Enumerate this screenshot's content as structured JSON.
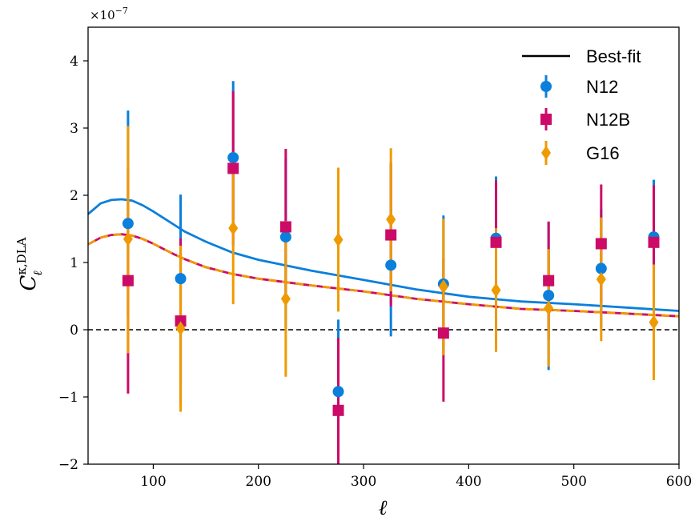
{
  "chart_data": {
    "type": "scatter",
    "xlabel": "ℓ",
    "ylabel": "C",
    "ylabel_sub": "ℓ",
    "ylabel_sup": "κ,DLA",
    "scale_label": "×10",
    "scale_exponent": "−7",
    "xlim": [
      38,
      600
    ],
    "ylim": [
      -2,
      4.5
    ],
    "xticks": [
      100,
      200,
      300,
      400,
      500,
      600
    ],
    "xtick_labels": [
      "100",
      "200",
      "300",
      "400",
      "500",
      "600"
    ],
    "yticks": [
      -2,
      -1,
      0,
      1,
      2,
      3,
      4
    ],
    "ytick_labels": [
      "−2",
      "−1",
      "0",
      "1",
      "2",
      "3",
      "4"
    ],
    "zero_line": 0,
    "grid": false,
    "legend_position": "top-right",
    "legend": [
      {
        "label": "Best-fit",
        "marker": "line",
        "color": "#000000"
      },
      {
        "label": "N12",
        "marker": "circle",
        "color": "#0a7fdc"
      },
      {
        "label": "N12B",
        "marker": "square",
        "color": "#cc0a67"
      },
      {
        "label": "G16",
        "marker": "diamond",
        "color": "#ef9a00"
      }
    ],
    "curves": [
      {
        "name": "N12",
        "color": "#0a7fdc",
        "dash": false,
        "x": [
          38,
          50,
          60,
          70,
          80,
          90,
          100,
          110,
          120,
          130,
          150,
          175,
          200,
          250,
          300,
          350,
          400,
          450,
          500,
          550,
          600
        ],
        "y": [
          1.72,
          1.88,
          1.93,
          1.94,
          1.92,
          1.85,
          1.76,
          1.66,
          1.56,
          1.46,
          1.31,
          1.15,
          1.04,
          0.88,
          0.74,
          0.6,
          0.49,
          0.42,
          0.38,
          0.33,
          0.28
        ]
      },
      {
        "name": "N12B",
        "color": "#cc0a67",
        "dash": false,
        "x": [
          38,
          50,
          60,
          70,
          80,
          90,
          100,
          110,
          120,
          130,
          150,
          175,
          200,
          250,
          300,
          350,
          400,
          450,
          500,
          550,
          600
        ],
        "y": [
          1.27,
          1.37,
          1.41,
          1.42,
          1.4,
          1.35,
          1.28,
          1.2,
          1.12,
          1.05,
          0.93,
          0.83,
          0.76,
          0.66,
          0.57,
          0.46,
          0.38,
          0.31,
          0.28,
          0.24,
          0.2
        ]
      },
      {
        "name": "G16",
        "color": "#ef9a00",
        "dash": true,
        "x": [
          38,
          50,
          60,
          70,
          80,
          90,
          100,
          110,
          120,
          130,
          150,
          175,
          200,
          250,
          300,
          350,
          400,
          450,
          500,
          550,
          600
        ],
        "y": [
          1.27,
          1.37,
          1.41,
          1.42,
          1.4,
          1.35,
          1.28,
          1.2,
          1.12,
          1.05,
          0.93,
          0.83,
          0.76,
          0.66,
          0.57,
          0.46,
          0.38,
          0.31,
          0.28,
          0.24,
          0.2
        ]
      }
    ],
    "series": [
      {
        "name": "N12",
        "marker": "circle",
        "color": "#0a7fdc",
        "x": [
          76,
          126,
          176,
          226,
          276,
          326,
          376,
          426,
          476,
          526,
          576
        ],
        "y": [
          1.58,
          0.76,
          2.56,
          1.38,
          -0.92,
          0.96,
          0.68,
          1.36,
          0.51,
          0.91,
          1.38
        ],
        "yerr_low": [
          0.2,
          -0.8,
          1.64,
          0.03,
          -2.0,
          -0.1,
          -0.38,
          0.43,
          -0.6,
          0.03,
          0.53
        ],
        "yerr_high": [
          3.26,
          2.01,
          3.7,
          2.55,
          0.15,
          2.5,
          1.7,
          2.28,
          1.6,
          1.79,
          2.23
        ]
      },
      {
        "name": "N12B",
        "marker": "square",
        "color": "#cc0a67",
        "x": [
          76,
          126,
          176,
          226,
          276,
          326,
          376,
          426,
          476,
          526,
          576
        ],
        "y": [
          0.73,
          0.13,
          2.4,
          1.53,
          -1.2,
          1.41,
          -0.05,
          1.3,
          0.73,
          1.28,
          1.3
        ],
        "yerr_low": [
          -0.95,
          -1.1,
          1.25,
          0.4,
          -2.0,
          0.35,
          -1.07,
          0.4,
          -0.15,
          0.4,
          0.4
        ],
        "yerr_high": [
          2.4,
          1.36,
          3.55,
          2.69,
          -0.12,
          2.47,
          1.06,
          2.22,
          1.61,
          2.16,
          2.15
        ]
      },
      {
        "name": "G16",
        "marker": "diamond",
        "color": "#ef9a00",
        "x": [
          76,
          126,
          176,
          226,
          276,
          326,
          376,
          426,
          476,
          526,
          576
        ],
        "y": [
          1.35,
          0.02,
          1.51,
          0.46,
          1.34,
          1.64,
          0.64,
          0.59,
          0.32,
          0.75,
          0.11
        ],
        "yerr_low": [
          -0.35,
          -1.22,
          0.38,
          -0.7,
          0.27,
          0.57,
          -0.38,
          -0.33,
          -0.55,
          -0.17,
          -0.75
        ],
        "yerr_high": [
          3.03,
          1.25,
          2.64,
          1.62,
          2.41,
          2.7,
          1.65,
          1.51,
          1.2,
          1.67,
          0.97
        ]
      }
    ]
  }
}
